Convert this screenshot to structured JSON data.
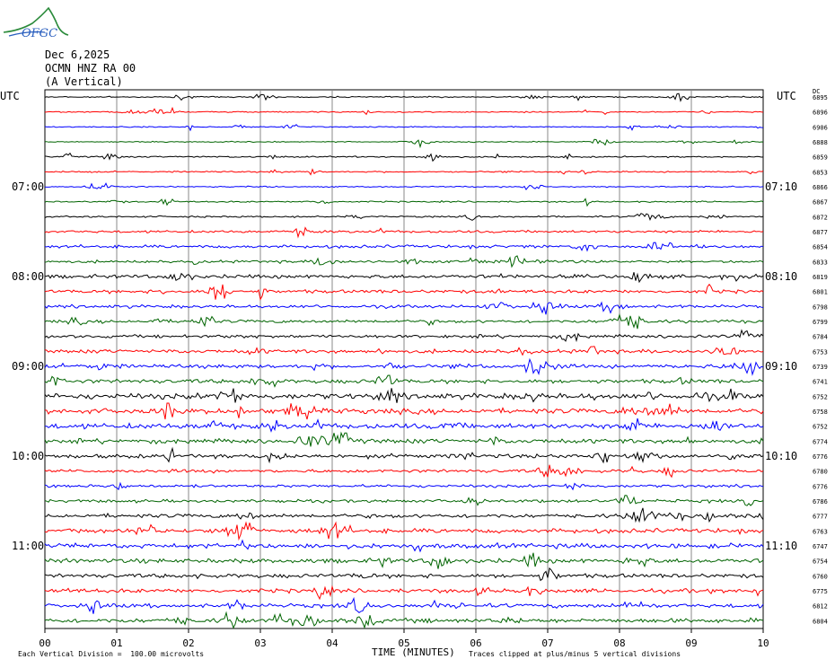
{
  "header": {
    "logo_text": "OFGC",
    "date": "Dec 6,2025",
    "station": "OCMN HNZ RA 00",
    "component": "(A Vertical)"
  },
  "chart_data": {
    "type": "line",
    "title": "",
    "left_axis_label": "UTC",
    "right_axis_label": "UTC",
    "dc_label": "DC",
    "xlabel": "TIME (MINUTES)",
    "xlim": [
      0,
      10
    ],
    "x_ticks": [
      "00",
      "01",
      "02",
      "03",
      "04",
      "05",
      "06",
      "07",
      "08",
      "09",
      "10"
    ],
    "left_hour_labels": [
      {
        "row": 6,
        "label": "07:00"
      },
      {
        "row": 12,
        "label": "08:00"
      },
      {
        "row": 18,
        "label": "09:00"
      },
      {
        "row": 24,
        "label": "10:00"
      },
      {
        "row": 30,
        "label": "11:00"
      }
    ],
    "right_hour_labels": [
      {
        "row": 6,
        "label": "07:10"
      },
      {
        "row": 12,
        "label": "08:10"
      },
      {
        "row": 18,
        "label": "09:10"
      },
      {
        "row": 24,
        "label": "10:10"
      },
      {
        "row": 30,
        "label": "11:10"
      }
    ],
    "trace_colors": [
      "#000000",
      "#ff0000",
      "#0000ff",
      "#006400"
    ],
    "traces": [
      {
        "dc": "6895",
        "noise": 0.6
      },
      {
        "dc": "6896",
        "noise": 0.6
      },
      {
        "dc": "6906",
        "noise": 0.5
      },
      {
        "dc": "6888",
        "noise": 0.5
      },
      {
        "dc": "6859",
        "noise": 0.7
      },
      {
        "dc": "6853",
        "noise": 0.7
      },
      {
        "dc": "6866",
        "noise": 0.6
      },
      {
        "dc": "6867",
        "noise": 0.7
      },
      {
        "dc": "6872",
        "noise": 0.8
      },
      {
        "dc": "6877",
        "noise": 1.2
      },
      {
        "dc": "6854",
        "noise": 1.5
      },
      {
        "dc": "6833",
        "noise": 1.3
      },
      {
        "dc": "6819",
        "noise": 1.8
      },
      {
        "dc": "6801",
        "noise": 1.7
      },
      {
        "dc": "6798",
        "noise": 1.6
      },
      {
        "dc": "6799",
        "noise": 1.6
      },
      {
        "dc": "6784",
        "noise": 1.6
      },
      {
        "dc": "6753",
        "noise": 1.8
      },
      {
        "dc": "6739",
        "noise": 2.0
      },
      {
        "dc": "6741",
        "noise": 2.0
      },
      {
        "dc": "6752",
        "noise": 2.8
      },
      {
        "dc": "6758",
        "noise": 2.6
      },
      {
        "dc": "6752",
        "noise": 2.6
      },
      {
        "dc": "6774",
        "noise": 2.2
      },
      {
        "dc": "6776",
        "noise": 2.0
      },
      {
        "dc": "6780",
        "noise": 1.6
      },
      {
        "dc": "6776",
        "noise": 1.4
      },
      {
        "dc": "6786",
        "noise": 1.5
      },
      {
        "dc": "6777",
        "noise": 2.0
      },
      {
        "dc": "6763",
        "noise": 2.2
      },
      {
        "dc": "6747",
        "noise": 2.4
      },
      {
        "dc": "6754",
        "noise": 2.2
      },
      {
        "dc": "6760",
        "noise": 2.0
      },
      {
        "dc": "6775",
        "noise": 2.0
      },
      {
        "dc": "6812",
        "noise": 2.0
      },
      {
        "dc": "6804",
        "noise": 2.2
      }
    ]
  },
  "footer": {
    "scale_note": "Each Vertical Division =  100.00 microvolts",
    "clip_note": "Traces clipped at plus/minus 5 vertical divisions"
  }
}
